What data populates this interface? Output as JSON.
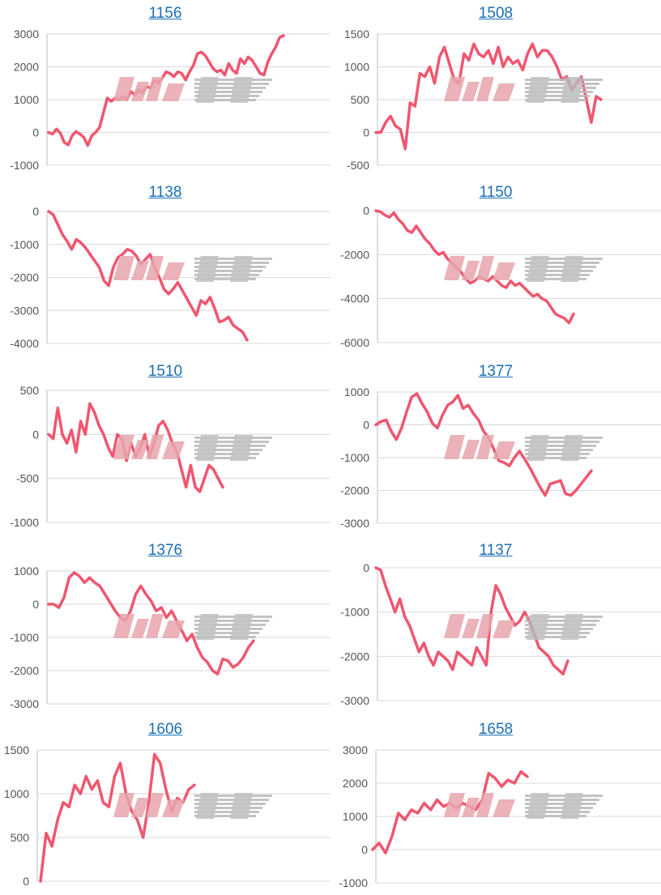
{
  "colors": {
    "line": "#f0566f",
    "link": "#1a6fb5",
    "grid": "#d9d9d9",
    "watermark_pink": "#e8a5ad",
    "watermark_gray": "#b9b9b9"
  },
  "icons": {
    "watermark": "minrepo-logo-watermark"
  },
  "chart_data": [
    {
      "type": "line",
      "title": "1156",
      "ylim": [
        -1000,
        3000
      ],
      "yticks": [
        3000,
        2000,
        1000,
        0,
        -1000
      ],
      "grid": true,
      "series": [
        {
          "values": [
            0,
            -50,
            100,
            -20,
            -300,
            -380,
            -100,
            30,
            -50,
            -150,
            -400,
            -100,
            0,
            150,
            600,
            1050,
            950,
            1050,
            1000,
            1100,
            1000,
            1250,
            1150,
            1300,
            1200,
            1400,
            1350,
            1600,
            1500,
            1650,
            1850,
            1800,
            1700,
            1850,
            1800,
            1600,
            1850,
            2050,
            2400,
            2450,
            2350,
            2150,
            1950,
            1850,
            1900,
            1750,
            2100,
            1900,
            1800,
            2250,
            2100,
            2300,
            2200,
            2000,
            1800,
            1750,
            2150,
            2400,
            2600,
            2900,
            2950
          ]
        }
      ]
    },
    {
      "type": "line",
      "title": "1508",
      "ylim": [
        -500,
        1500
      ],
      "yticks": [
        1500,
        1000,
        500,
        0,
        -500
      ],
      "grid": true,
      "series": [
        {
          "values": [
            0,
            0,
            150,
            250,
            100,
            50,
            -250,
            450,
            400,
            900,
            850,
            1000,
            750,
            1150,
            1300,
            1050,
            800,
            750,
            1200,
            1100,
            1350,
            1200,
            1150,
            1250,
            1050,
            1300,
            1000,
            1150,
            1050,
            1100,
            950,
            1200,
            1350,
            1150,
            1250,
            1250,
            1150,
            1000,
            800,
            850,
            650,
            750,
            850,
            500,
            150,
            550,
            500
          ]
        }
      ]
    },
    {
      "type": "line",
      "title": "1138",
      "ylim": [
        -4000,
        0
      ],
      "yticks": [
        0,
        -1000,
        -2000,
        -3000,
        -4000
      ],
      "grid": true,
      "series": [
        {
          "values": [
            0,
            -100,
            -400,
            -700,
            -900,
            -1150,
            -850,
            -950,
            -1100,
            -1300,
            -1500,
            -1700,
            -2100,
            -2250,
            -1700,
            -1400,
            -1300,
            -1150,
            -1200,
            -1350,
            -1600,
            -1450,
            -1300,
            -1700,
            -2000,
            -2350,
            -2500,
            -2350,
            -2150,
            -2400,
            -2650,
            -2900,
            -3150,
            -2700,
            -2800,
            -2600,
            -2950,
            -3350,
            -3300,
            -3200,
            -3450,
            -3550,
            -3650,
            -3900
          ]
        }
      ]
    },
    {
      "type": "line",
      "title": "1150",
      "ylim": [
        -6000,
        0
      ],
      "yticks": [
        0,
        -2000,
        -4000,
        -6000
      ],
      "grid": true,
      "series": [
        {
          "values": [
            0,
            -50,
            -200,
            -300,
            -100,
            -400,
            -600,
            -900,
            -1000,
            -700,
            -1000,
            -1300,
            -1500,
            -1800,
            -2000,
            -1900,
            -2200,
            -2400,
            -2600,
            -2800,
            -3100,
            -3300,
            -3200,
            -3000,
            -3100,
            -3200,
            -3000,
            -3200,
            -3400,
            -3500,
            -3200,
            -3400,
            -3300,
            -3500,
            -3700,
            -3900,
            -3800,
            -4000,
            -4100,
            -4400,
            -4700,
            -4800,
            -4900,
            -5100,
            -4700
          ]
        }
      ]
    },
    {
      "type": "line",
      "title": "1510",
      "ylim": [
        -1000,
        500
      ],
      "yticks": [
        500,
        0,
        -500,
        -1000
      ],
      "grid": true,
      "series": [
        {
          "values": [
            0,
            -50,
            300,
            0,
            -100,
            50,
            -200,
            150,
            0,
            350,
            250,
            100,
            0,
            -150,
            -250,
            0,
            -50,
            -300,
            -100,
            -250,
            -150,
            0,
            -250,
            -100,
            100,
            150,
            50,
            -100,
            -200,
            -400,
            -600,
            -350,
            -600,
            -650,
            -500,
            -350,
            -400,
            -500,
            -600
          ]
        }
      ]
    },
    {
      "type": "line",
      "title": "1377",
      "ylim": [
        -3000,
        1000
      ],
      "yticks": [
        1000,
        0,
        -1000,
        -2000,
        -3000
      ],
      "grid": true,
      "series": [
        {
          "values": [
            0,
            100,
            150,
            -200,
            -450,
            -100,
            400,
            850,
            950,
            650,
            400,
            50,
            -100,
            300,
            600,
            700,
            900,
            500,
            600,
            350,
            150,
            -200,
            -400,
            -750,
            -1100,
            -1150,
            -1250,
            -1000,
            -800,
            -1050,
            -1300,
            -1600,
            -1900,
            -2150,
            -1800,
            -1750,
            -1700,
            -2100,
            -2150,
            -2000,
            -1800,
            -1600,
            -1400
          ]
        }
      ]
    },
    {
      "type": "line",
      "title": "1376",
      "ylim": [
        -3000,
        1000
      ],
      "yticks": [
        1000,
        0,
        -1000,
        -2000,
        -3000
      ],
      "grid": true,
      "series": [
        {
          "values": [
            0,
            0,
            -100,
            200,
            800,
            950,
            850,
            650,
            800,
            650,
            550,
            300,
            50,
            -200,
            -400,
            -500,
            -200,
            300,
            550,
            300,
            100,
            -200,
            -100,
            -400,
            -200,
            -500,
            -800,
            -1100,
            -900,
            -1300,
            -1600,
            -1750,
            -2000,
            -2100,
            -1650,
            -1700,
            -1900,
            -1800,
            -1600,
            -1300,
            -1100
          ]
        }
      ]
    },
    {
      "type": "line",
      "title": "1137",
      "ylim": [
        -3000,
        0
      ],
      "yticks": [
        0,
        -1000,
        -2000,
        -3000
      ],
      "grid": true,
      "series": [
        {
          "values": [
            0,
            -50,
            -400,
            -700,
            -1000,
            -700,
            -1100,
            -1300,
            -1600,
            -1900,
            -1700,
            -2000,
            -2200,
            -1900,
            -2000,
            -2100,
            -2300,
            -1900,
            -2000,
            -2100,
            -2200,
            -1800,
            -2000,
            -2200,
            -1000,
            -400,
            -600,
            -900,
            -1100,
            -1300,
            -1200,
            -1000,
            -1200,
            -1500,
            -1800,
            -1900,
            -2000,
            -2200,
            -2300,
            -2400,
            -2100
          ]
        }
      ]
    },
    {
      "type": "line",
      "title": "1606",
      "ylim": [
        0,
        1500
      ],
      "yticks": [
        1500,
        1000,
        500,
        0
      ],
      "grid": true,
      "series": [
        {
          "values": [
            0,
            550,
            400,
            700,
            900,
            850,
            1100,
            1000,
            1200,
            1050,
            1150,
            900,
            850,
            1200,
            1350,
            1000,
            800,
            700,
            500,
            900,
            1450,
            1350,
            1050,
            800,
            950,
            900,
            1050,
            1100
          ]
        }
      ]
    },
    {
      "type": "line",
      "title": "1658",
      "ylim": [
        -1000,
        3000
      ],
      "yticks": [
        3000,
        2000,
        1000,
        0,
        -1000
      ],
      "grid": true,
      "series": [
        {
          "values": [
            0,
            200,
            -100,
            400,
            1100,
            900,
            1200,
            1100,
            1400,
            1200,
            1500,
            1300,
            1400,
            1250,
            1400,
            1300,
            1200,
            1500,
            2300,
            2150,
            1900,
            2100,
            2000,
            2350,
            2200
          ]
        }
      ]
    }
  ]
}
